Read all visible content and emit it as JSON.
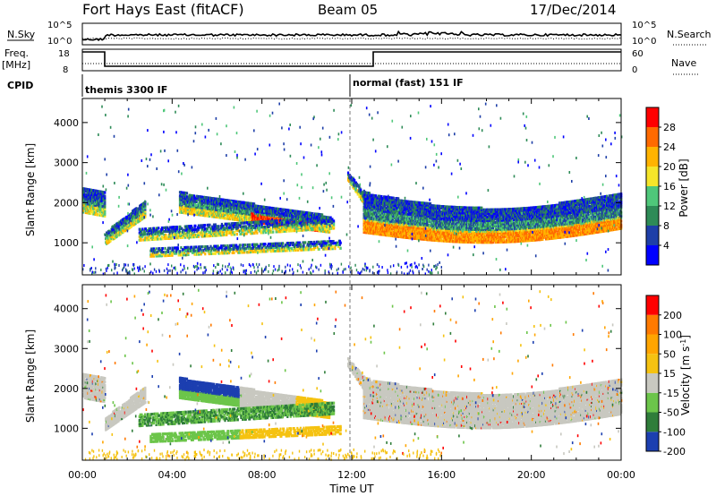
{
  "header": {
    "station": "Fort Hays East (fitACF)",
    "beam": "Beam 05",
    "date": "17/Dec/2014"
  },
  "strip_labels": {
    "nsky": "N.Sky",
    "nsearch": "N.Search",
    "freq": "Freq.",
    "freq_unit": "[MHz]",
    "nave": "Nave",
    "cpid": "CPID",
    "nsky_ticks": [
      "10^5",
      "10^0"
    ],
    "nsearch_ticks": [
      "10^5",
      "10^0"
    ],
    "freq_ticks": [
      "18",
      "8"
    ],
    "nave_ticks": [
      "60",
      "0"
    ]
  },
  "cpid_labels": [
    "themis 3300 IF",
    "normal (fast) 151 IF"
  ],
  "colors": {
    "power": [
      "#0000ff",
      "#1e3fa8",
      "#2e8b57",
      "#4fc77a",
      "#f5e52a",
      "#ffb300",
      "#ff6a00",
      "#ff0000"
    ],
    "velocity": [
      "#ff0000",
      "#ff7a00",
      "#ffa500",
      "#f5c211",
      "#c8c8c0",
      "#6cc54a",
      "#2f7d3a",
      "#1c3fb0"
    ]
  },
  "chart_data": [
    {
      "type": "heatmap",
      "name": "power",
      "xlabel": "",
      "ylabel": "Slant Range [km]",
      "xlim": [
        0,
        24
      ],
      "ylim": [
        200,
        4600
      ],
      "y_ticks": [
        "1000",
        "2000",
        "3000",
        "4000"
      ],
      "colorbar": {
        "label": "Power [dB]",
        "ticks": [
          "4",
          "8",
          "12",
          "16",
          "20",
          "24",
          "28"
        ]
      }
    },
    {
      "type": "heatmap",
      "name": "velocity",
      "xlabel": "Time UT",
      "ylabel": "Slant Range [km]",
      "xlim": [
        0,
        24
      ],
      "ylim": [
        200,
        4600
      ],
      "x_ticks": [
        "00:00",
        "04:00",
        "08:00",
        "12:00",
        "16:00",
        "20:00",
        "00:00"
      ],
      "y_ticks": [
        "1000",
        "2000",
        "3000",
        "4000"
      ],
      "colorbar": {
        "label": "Velocity [m s",
        "label_sup": "-1",
        "label_end": "]",
        "ticks": [
          "200",
          "100",
          "50",
          "15",
          "-15",
          "-50",
          "-100",
          "-200"
        ]
      }
    }
  ]
}
